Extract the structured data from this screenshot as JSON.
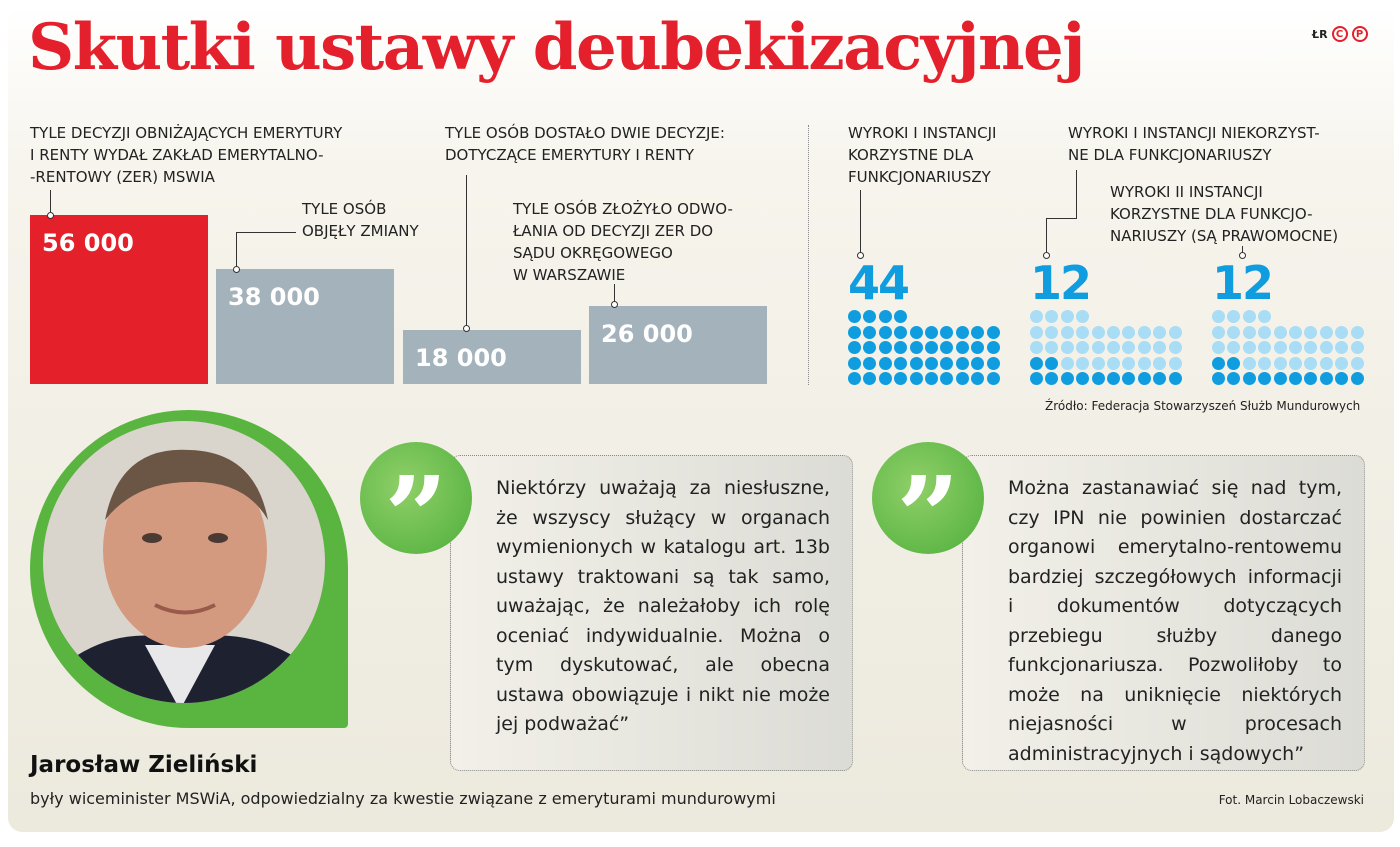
{
  "title": "Skutki ustawy deubekizacyjnej",
  "logo": {
    "initials": "ŁR",
    "marks": [
      "C",
      "P"
    ]
  },
  "chart_data": [
    {
      "type": "bar",
      "title": "",
      "categories": [
        "Tyle decyzji obniżających emerytury i renty wydał Zakład Emerytalno-Rentowy (ZER) MSWiA",
        "Tyle osób objęły zmiany",
        "Tyle osób dostało dwie decyzje: dotyczące emerytury i renty",
        "Tyle osób złożyło odwołania od decyzji ZER do Sądu Okręgowego w Warszawie"
      ],
      "values": [
        56000,
        38000,
        18000,
        26000
      ],
      "value_labels": [
        "56 000",
        "38 000",
        "18 000",
        "26 000"
      ],
      "colors": [
        "#e4202a",
        "#a4b2bb",
        "#a4b2bb",
        "#a4b2bb"
      ],
      "ylim": [
        0,
        56000
      ]
    },
    {
      "type": "dot-matrix",
      "total": 44,
      "categories": [
        "Wyroki I instancji korzystne dla funkcjonariuszy",
        "Wyroki I instancji niekorzystne dla funkcjonariuszy",
        "Wyroki II instancji korzystne dla funkcjonariuszy (są prawomocne)"
      ],
      "values": [
        44,
        12,
        12
      ],
      "colors": {
        "filled": "#0f9de0",
        "empty": "#a9dcf5"
      },
      "source": "Źródło: Federacja Stowarzyszeń Służb Mundurowych"
    }
  ],
  "labels": {
    "bar1": "Tyle decyzji obniżających emerytury\ni renty wydał Zakład Emerytalno-\n-Rentowy (ZER) MSWiA",
    "bar2": "Tyle osób\nobjęły zmiany",
    "bar3": "Tyle osób dostało dwie decyzje:\ndotyczące emerytury i renty",
    "bar4": "Tyle osób złożyło odwo-\nłania od decyzji ZER do\nsądu okręgowego\nw Warszawie",
    "dots1": "Wyroki I instancji\nkorzystne dla\nfunkcjonariuszy",
    "dots2": "Wyroki I instancji niekorzyst-\nne dla funkcjonariuszy",
    "dots3": "Wyroki II instancji\nkorzystne dla funkcjo-\nnariuszy (są prawomocne)"
  },
  "person": {
    "name": "Jarosław Zieliński",
    "role": "były wiceminister MSWiA, odpowiedzialny za kwestie związane z emeryturami mundurowymi",
    "photo_credit": "Fot. Marcin Lobaczewski"
  },
  "quotes": [
    "Niektórzy uważają za niesłuszne, że wszyscy służący w organach wymienionych w katalogu art. 13b ustawy traktowani są tak samo, uważając, że należałoby ich rolę oceniać indywidualnie. Można o tym dyskutować, ale obecna ustawa obowiązuje i nikt nie może jej podważać”",
    "Można zastanawiać się nad tym, czy IPN nie powinien dostarczać organowi emerytalno-rentowemu bardziej szczegółowych informacji i dokumentów dotyczących przebiegu służby danego funkcjonariusza. Pozwoliłoby to może na uniknięcie niektórych niejasności w procesach administracyjnych i sądowych”"
  ],
  "quote_mark": "”"
}
